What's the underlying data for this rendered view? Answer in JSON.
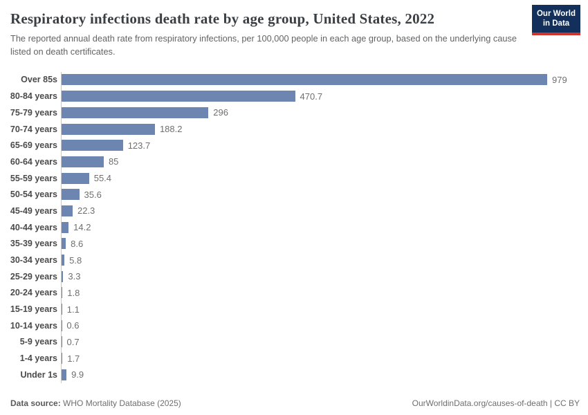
{
  "header": {
    "title": "Respiratory infections death rate by age group, United States, 2022",
    "subtitle": "The reported annual death rate from respiratory infections, per 100,000 people in each age group, based on the underlying cause listed on death certificates.",
    "logo": {
      "line1": "Our World",
      "line2": "in Data",
      "bg_color": "#12305b",
      "stripe_color": "#cf342c"
    }
  },
  "chart_data": {
    "type": "bar",
    "orientation": "horizontal",
    "title": "Respiratory infections death rate by age group, United States, 2022",
    "xlabel": "",
    "ylabel": "",
    "xlim": [
      0,
      979
    ],
    "grid": false,
    "legend": "none",
    "bar_color": "#6d85b1",
    "axis_line_color": "#c8c8c8",
    "categories": [
      "Over 85s",
      "80-84 years",
      "75-79 years",
      "70-74 years",
      "65-69 years",
      "60-64 years",
      "55-59 years",
      "50-54 years",
      "45-49 years",
      "40-44 years",
      "35-39 years",
      "30-34 years",
      "25-29 years",
      "20-24 years",
      "15-19 years",
      "10-14 years",
      "5-9 years",
      "1-4 years",
      "Under 1s"
    ],
    "values": [
      979,
      470.7,
      296,
      188.2,
      123.7,
      85,
      55.4,
      35.6,
      22.3,
      14.2,
      8.6,
      5.8,
      3.3,
      1.8,
      1.1,
      0.6,
      0.7,
      1.7,
      9.9
    ],
    "value_labels": [
      "979",
      "470.7",
      "296",
      "188.2",
      "123.7",
      "85",
      "55.4",
      "35.6",
      "22.3",
      "14.2",
      "8.6",
      "5.8",
      "3.3",
      "1.8",
      "1.1",
      "0.6",
      "0.7",
      "1.7",
      "9.9"
    ]
  },
  "footer": {
    "data_source_label": "Data source:",
    "data_source_value": "WHO Mortality Database (2025)",
    "url": "OurWorldinData.org/causes-of-death",
    "separator": "|",
    "license": "CC BY"
  }
}
